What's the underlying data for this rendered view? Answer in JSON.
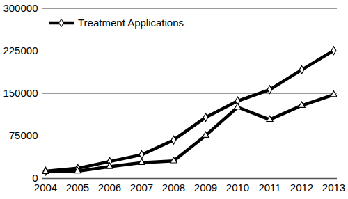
{
  "chart_data": {
    "type": "line",
    "categories": [
      "2004",
      "2005",
      "2006",
      "2007",
      "2008",
      "2009",
      "2010",
      "2011",
      "2012",
      "2013"
    ],
    "series": [
      {
        "name": "Treatment Applications",
        "color": "#000000",
        "marker": "diamond",
        "values": [
          13000,
          18000,
          30000,
          42000,
          68000,
          108000,
          137000,
          157000,
          192000,
          226000
        ]
      },
      {
        "name": null,
        "color": "#000000",
        "marker": "triangle",
        "values": [
          12000,
          13000,
          21000,
          28000,
          31000,
          76000,
          126000,
          104000,
          129000,
          148000
        ]
      }
    ],
    "ylim": [
      0,
      300000
    ],
    "yticks": [
      0,
      75000,
      150000,
      225000,
      300000
    ],
    "grid": true,
    "legend": "top-left"
  }
}
